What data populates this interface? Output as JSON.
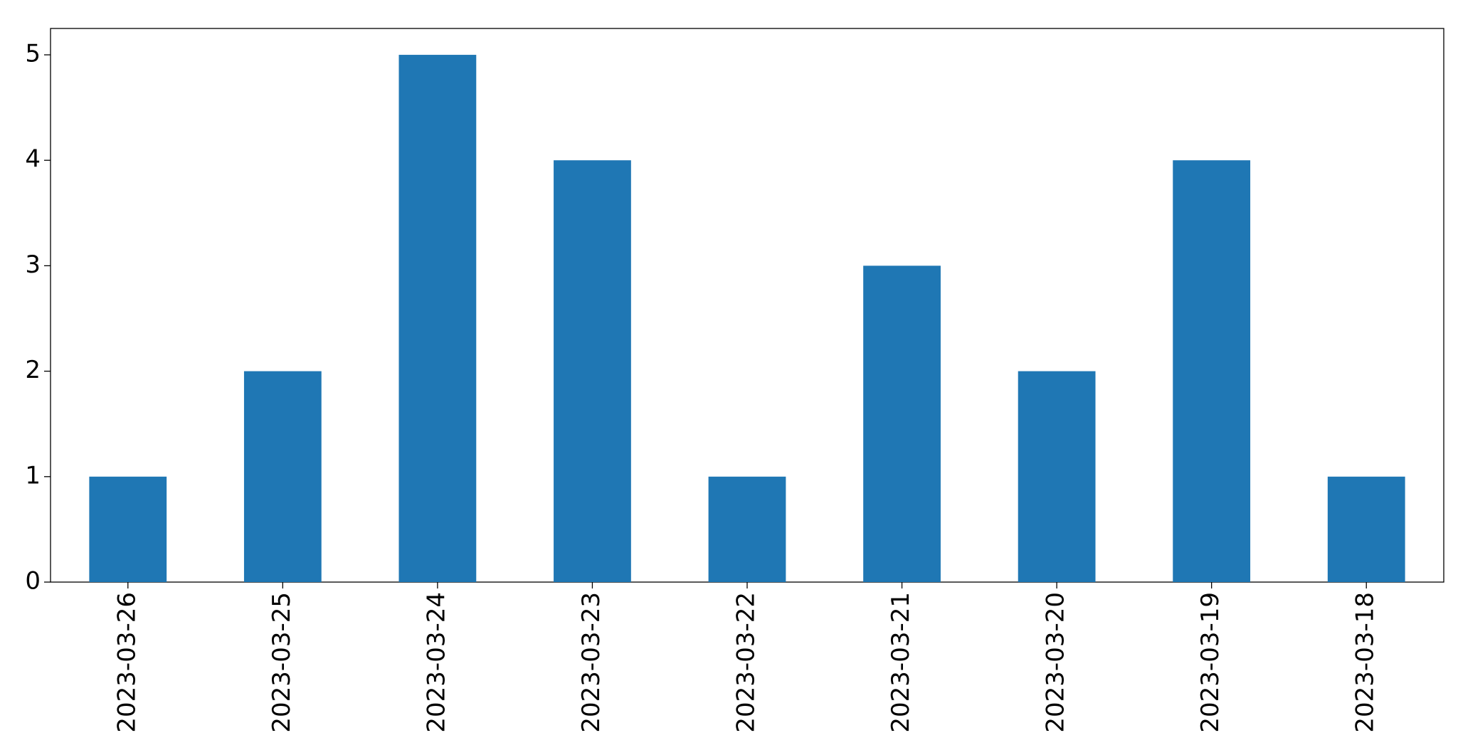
{
  "chart_data": {
    "type": "bar",
    "categories": [
      "2023-03-26",
      "2023-03-25",
      "2023-03-24",
      "2023-03-23",
      "2023-03-22",
      "2023-03-21",
      "2023-03-20",
      "2023-03-19",
      "2023-03-18"
    ],
    "values": [
      1,
      2,
      5,
      4,
      1,
      3,
      2,
      4,
      1
    ],
    "color": "#1f77b4",
    "ylim": [
      0,
      5.25
    ],
    "yticks": [
      0,
      1,
      2,
      3,
      4,
      5
    ],
    "grid": false
  }
}
